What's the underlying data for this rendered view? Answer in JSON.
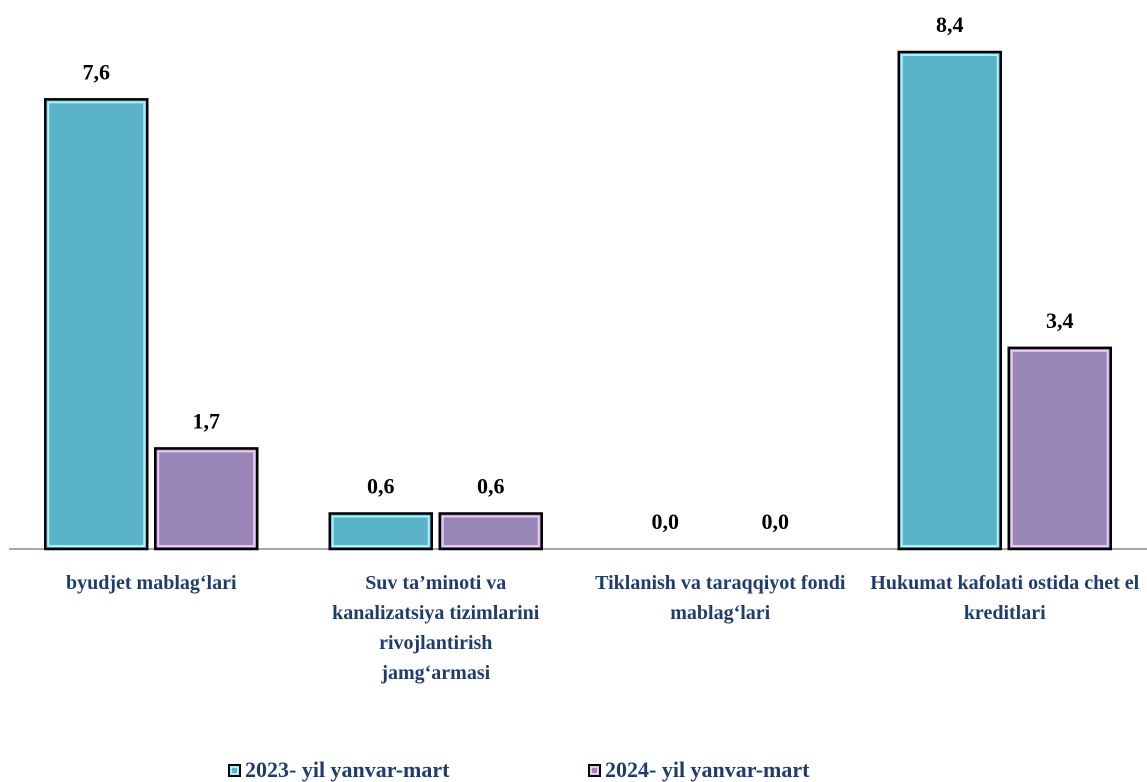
{
  "chart_data": {
    "type": "bar",
    "categories": [
      "byudjet mablag‘lari",
      "Suv ta’minoti va kanalizatsiya tizimlarini rivojlantirish jamg‘armasi",
      "Tiklanish va taraqqiyot fondi mablag‘lari",
      "Hukumat kafolati ostida chet el kreditlari"
    ],
    "series": [
      {
        "name": "2023- yil yanvar-mart",
        "color": "#5ab3c9",
        "values": [
          7.6,
          0.6,
          0.0,
          8.4
        ],
        "value_labels": [
          "7,6",
          "0,6",
          "0,0",
          "8,4"
        ]
      },
      {
        "name": "2024- yil yanvar-mart",
        "color": "#9a86b6",
        "values": [
          1.7,
          0.6,
          0.0,
          3.4
        ],
        "value_labels": [
          "1,7",
          "0,6",
          "0,0",
          "3,4"
        ]
      }
    ],
    "legend": "bottom"
  }
}
